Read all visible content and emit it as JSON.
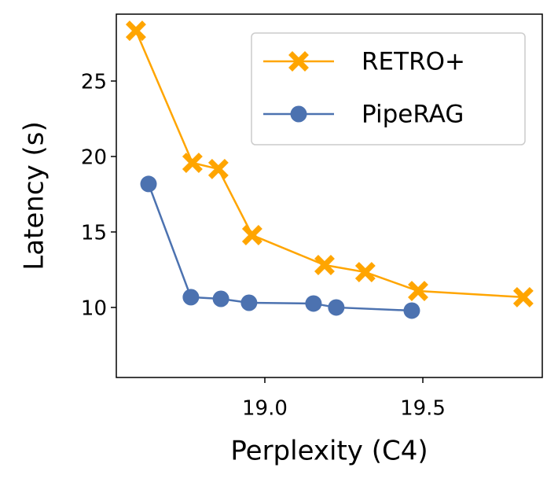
{
  "chart_data": {
    "type": "line",
    "xlabel": "Perplexity (C4)",
    "ylabel": "Latency (s)",
    "xlim": [
      18.53,
      19.878
    ],
    "ylim": [
      5.36,
      29.43
    ],
    "xticks": [
      {
        "value": 19,
        "label": "19.0"
      },
      19.5
    ],
    "yticks": [
      10,
      15,
      20,
      25
    ],
    "legend": "upper right",
    "grid": false,
    "series": [
      {
        "name": "RETRO+",
        "color": "#FFA500",
        "marker": "X",
        "x": [
          18.592,
          18.771,
          18.853,
          18.96,
          19.189,
          19.318,
          19.485,
          19.818
        ],
        "values": [
          28.33,
          19.58,
          19.17,
          14.79,
          12.81,
          12.34,
          11.09,
          10.68
        ]
      },
      {
        "name": "PipeRAG",
        "color": "#4C72B0",
        "marker": "o",
        "x": [
          18.632,
          18.766,
          18.861,
          18.95,
          19.154,
          19.226,
          19.465
        ],
        "values": [
          18.18,
          10.68,
          10.57,
          10.31,
          10.26,
          10.0,
          9.79
        ]
      }
    ]
  }
}
